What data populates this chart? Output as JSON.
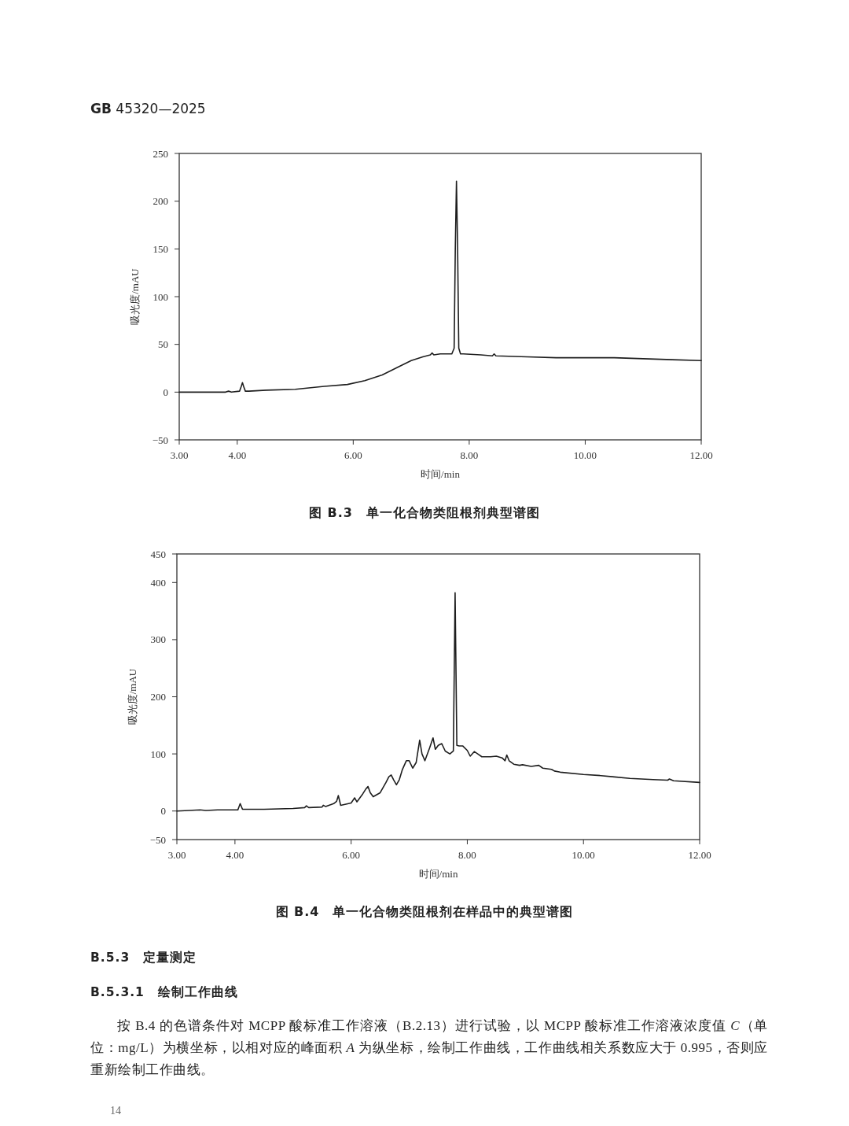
{
  "chart_data": [
    {
      "type": "line",
      "title": "图 B.3　单一化合物类阻根剂典型谱图",
      "xlabel": "时间/min",
      "ylabel": "吸光度/mAU",
      "color": "#1e1e1e",
      "marker": "none",
      "line_style": "solid",
      "xlim": [
        3,
        12
      ],
      "ylim": [
        -50,
        250
      ],
      "xticks": [
        {
          "value": 3,
          "label": "3.00"
        },
        {
          "value": 4,
          "label": "4.00"
        },
        {
          "value": 6,
          "label": "6.00"
        },
        {
          "value": 8,
          "label": "8.00"
        },
        {
          "value": 10,
          "label": "10.00"
        },
        {
          "value": 12,
          "label": "12.00"
        }
      ],
      "yticks": [
        -50,
        0,
        50,
        100,
        150,
        200,
        250
      ],
      "x": [
        3,
        3.5,
        3.8,
        3.85,
        3.9,
        4.04,
        4.07,
        4.09,
        4.11,
        4.14,
        4.2,
        4.5,
        5,
        5.5,
        5.9,
        6.2,
        6.5,
        6.8,
        7.0,
        7.2,
        7.33,
        7.36,
        7.39,
        7.5,
        7.7,
        7.74,
        7.76,
        7.78,
        7.8,
        7.82,
        7.85,
        7.9,
        8.2,
        8.4,
        8.43,
        8.46,
        9,
        9.5,
        10,
        10.5,
        11,
        11.5,
        12
      ],
      "values": [
        0,
        0,
        0,
        1,
        0,
        1,
        6,
        10,
        6,
        1,
        1,
        2,
        3,
        6,
        8,
        12,
        18,
        27,
        33,
        37,
        39,
        41,
        39,
        40,
        40,
        46,
        150,
        221,
        150,
        46,
        40,
        40,
        39,
        38,
        40,
        38,
        37,
        36,
        36,
        36,
        35,
        34,
        33
      ],
      "annotations": [
        "**GB** 45320—2025"
      ]
    },
    {
      "type": "line",
      "title": "图 B.4　单一化合物类阻根剂在样品中的典型谱图",
      "xlabel": "时间/min",
      "ylabel": "吸光度/mAU",
      "color": "#1e1e1e",
      "marker": "none",
      "line_style": "solid",
      "xlim": [
        3,
        12
      ],
      "ylim": [
        -50,
        450
      ],
      "xticks": [
        {
          "value": 3,
          "label": "3.00"
        },
        {
          "value": 4,
          "label": "4.00"
        },
        {
          "value": 6,
          "label": "6.00"
        },
        {
          "value": 8,
          "label": "8.00"
        },
        {
          "value": 10,
          "label": "10.00"
        },
        {
          "value": 12,
          "label": "12.00"
        }
      ],
      "yticks": [
        -50,
        0,
        100,
        200,
        300,
        400,
        450
      ],
      "x": [
        3,
        3.4,
        3.5,
        3.7,
        3.9,
        4.05,
        4.09,
        4.13,
        4.5,
        5,
        5.2,
        5.23,
        5.27,
        5.5,
        5.52,
        5.56,
        5.7,
        5.75,
        5.78,
        5.82,
        6.0,
        6.06,
        6.1,
        6.2,
        6.25,
        6.29,
        6.33,
        6.38,
        6.5,
        6.6,
        6.65,
        6.69,
        6.73,
        6.78,
        6.83,
        6.88,
        6.95,
        7.0,
        7.06,
        7.12,
        7.18,
        7.22,
        7.27,
        7.35,
        7.41,
        7.45,
        7.5,
        7.56,
        7.62,
        7.7,
        7.76,
        7.79,
        7.82,
        7.86,
        7.92,
        8.0,
        8.05,
        8.12,
        8.18,
        8.25,
        8.4,
        8.5,
        8.6,
        8.65,
        8.68,
        8.72,
        8.8,
        8.9,
        8.95,
        9.1,
        9.23,
        9.3,
        9.45,
        9.5,
        9.6,
        10,
        10.3,
        10.5,
        10.8,
        11.2,
        11.45,
        11.48,
        11.55,
        12
      ],
      "values": [
        0,
        2,
        1,
        2,
        2,
        2,
        13,
        3,
        3,
        4.5,
        6,
        9,
        6,
        7,
        10,
        8,
        13,
        17,
        27,
        10,
        14,
        23,
        16,
        30,
        38,
        43,
        32,
        25,
        32,
        50,
        60,
        63,
        55,
        46,
        55,
        72,
        88,
        88,
        75,
        85,
        124,
        100,
        88,
        110,
        128,
        108,
        115,
        118,
        105,
        100,
        105,
        382,
        115,
        114,
        114,
        106,
        96,
        104,
        100,
        95,
        95,
        96,
        93,
        88,
        98,
        88,
        82,
        80,
        81,
        78,
        80,
        75,
        73,
        70,
        68,
        64,
        62,
        60,
        57,
        55,
        54,
        56,
        53,
        50
      ],
      "annotations": [
        "B.5.3　定量测定",
        "B.5.3.1　绘制工作曲线",
        "按 B.4 的色谱条件对 MCPP 酸标准工作溶液（B.2.13）进行试验，以 MCPP 酸标准工作溶液浓度值 *C*（单位：mg/L）为横坐标，以相对应的峰面积 *A* 为纵坐标，绘制工作曲线，工作曲线相关系数应大于 0.995，否则应重新绘制工作曲线。",
        "14"
      ]
    }
  ]
}
